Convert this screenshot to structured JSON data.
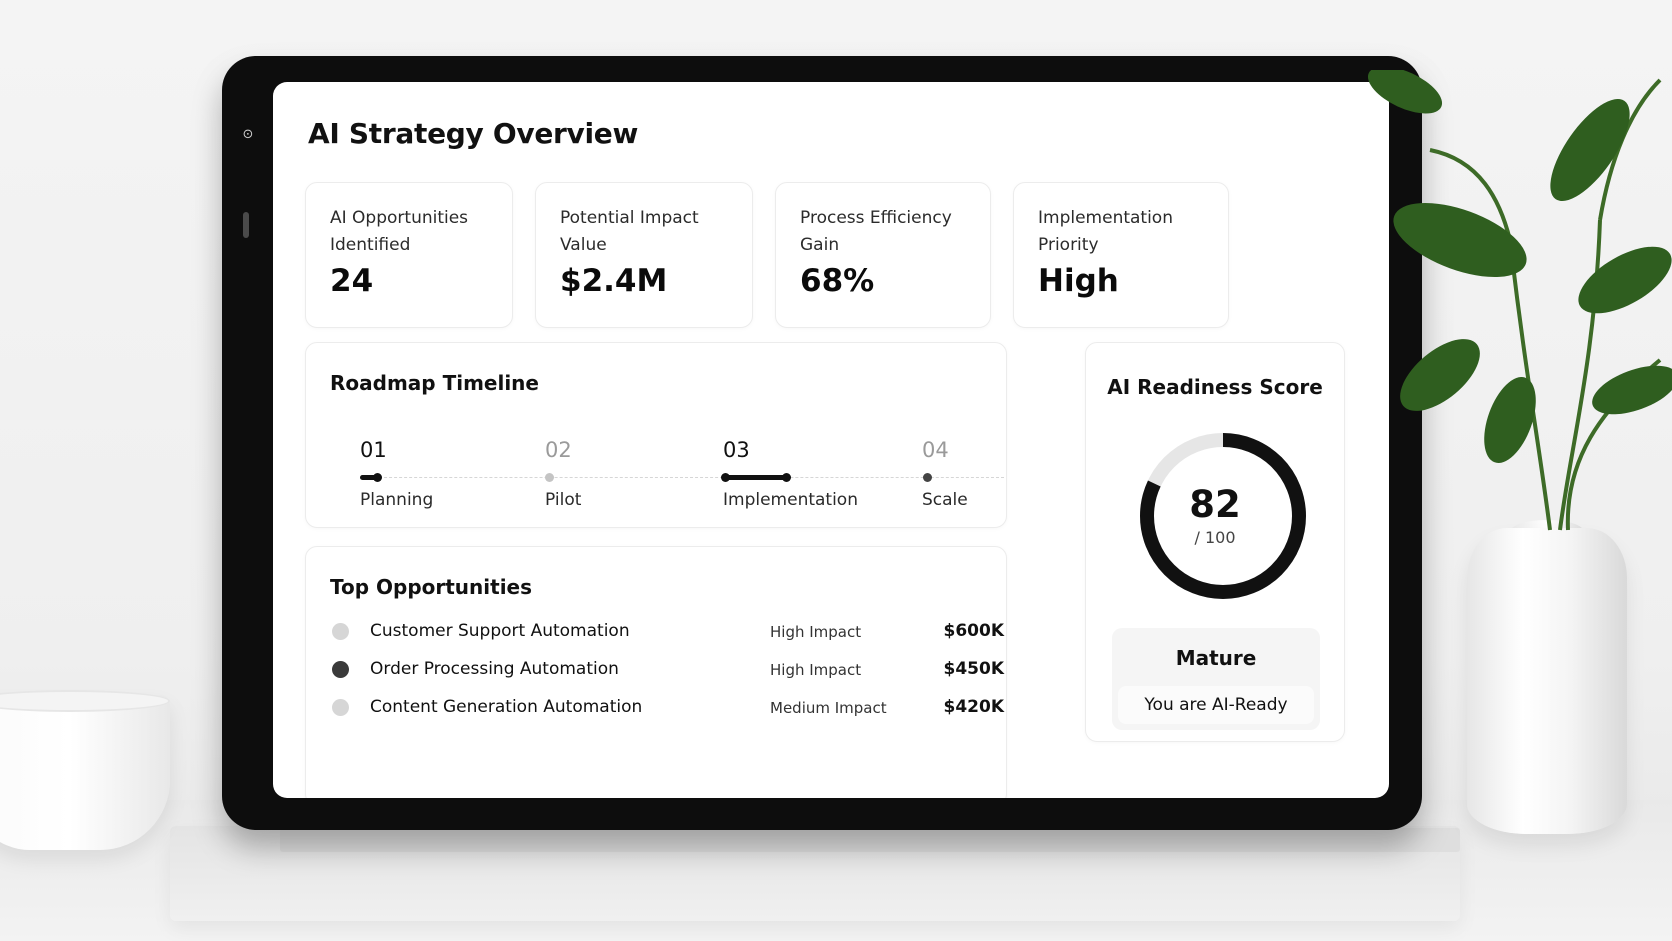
{
  "page": {
    "title": "AI Strategy Overview"
  },
  "stats": [
    {
      "label": "AI Opportunities Identified",
      "value": "24"
    },
    {
      "label": "Potential Impact Value",
      "value": "$2.4M"
    },
    {
      "label": "Process Efficiency Gain",
      "value": "68%"
    },
    {
      "label": "Implementation Priority",
      "value": "High"
    }
  ],
  "roadmap": {
    "title": "Roadmap Timeline",
    "steps": [
      {
        "num": "01",
        "label": "Planning"
      },
      {
        "num": "02",
        "label": "Pilot"
      },
      {
        "num": "03",
        "label": "Implementation"
      },
      {
        "num": "04",
        "label": "Scale"
      }
    ]
  },
  "opportunities": {
    "title": "Top Opportunities",
    "items": [
      {
        "name": "Customer Support Automation",
        "impact": "High Impact",
        "value": "$600K",
        "dot_color": "#d6d6d6"
      },
      {
        "name": "Order Processing Automation",
        "impact": "High Impact",
        "value": "$450K",
        "dot_color": "#3a3a3a"
      },
      {
        "name": "Content Generation Automation",
        "impact": "Medium Impact",
        "value": "$420K",
        "dot_color": "#d6d6d6"
      }
    ]
  },
  "readiness": {
    "title": "AI Readiness Score",
    "score": "82",
    "max": "/ 100",
    "score_fraction": 0.82,
    "status": "Mature",
    "status_sub": "You are AI-Ready"
  },
  "colors": {
    "accent": "#111111",
    "ring_track": "#e6e6e6",
    "plant_leaf": "#2f5e1f"
  }
}
